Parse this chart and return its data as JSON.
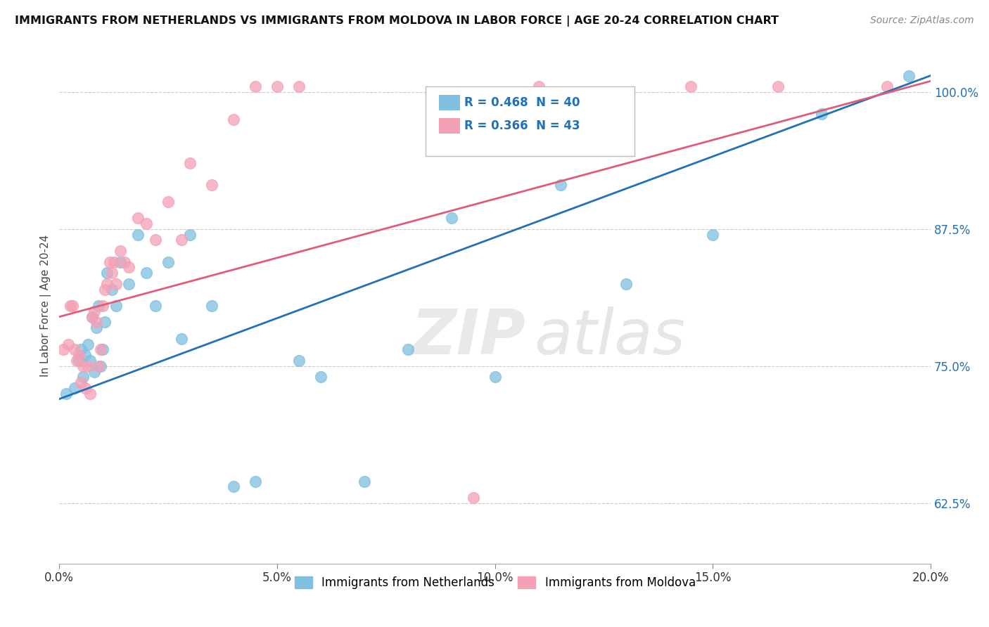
{
  "title": "IMMIGRANTS FROM NETHERLANDS VS IMMIGRANTS FROM MOLDOVA IN LABOR FORCE | AGE 20-24 CORRELATION CHART",
  "source": "Source: ZipAtlas.com",
  "xlabel": "",
  "ylabel": "In Labor Force | Age 20-24",
  "xlim": [
    0.0,
    20.0
  ],
  "ylim": [
    57.0,
    104.0
  ],
  "yticks": [
    62.5,
    75.0,
    87.5,
    100.0
  ],
  "xticks": [
    0.0,
    5.0,
    10.0,
    15.0,
    20.0
  ],
  "xtick_labels": [
    "0.0%",
    "5.0%",
    "10.0%",
    "15.0%",
    "20.0%"
  ],
  "ytick_labels": [
    "62.5%",
    "75.0%",
    "87.5%",
    "100.0%"
  ],
  "legend1_label": "Immigrants from Netherlands",
  "legend2_label": "Immigrants from Moldova",
  "R_netherlands": 0.468,
  "N_netherlands": 40,
  "R_moldova": 0.366,
  "N_moldova": 43,
  "netherlands_color": "#7fbfdf",
  "moldova_color": "#f4a0b5",
  "netherlands_line_color": "#2171b5",
  "moldova_line_color": "#e05c7a",
  "watermark_zip": "ZIP",
  "watermark_atlas": "atlas",
  "nl_line_x0": 0.0,
  "nl_line_y0": 72.0,
  "nl_line_x1": 20.0,
  "nl_line_y1": 101.5,
  "md_line_x0": 0.0,
  "md_line_y0": 79.5,
  "md_line_x1": 20.0,
  "md_line_y1": 101.0,
  "netherlands_x": [
    0.15,
    0.35,
    0.45,
    0.5,
    0.55,
    0.6,
    0.65,
    0.7,
    0.75,
    0.8,
    0.85,
    0.9,
    0.95,
    1.0,
    1.05,
    1.1,
    1.2,
    1.3,
    1.4,
    1.6,
    1.8,
    2.0,
    2.2,
    2.5,
    2.8,
    3.0,
    3.5,
    4.0,
    4.5,
    5.5,
    6.0,
    7.0,
    8.0,
    9.0,
    10.0,
    11.5,
    13.0,
    15.0,
    17.5,
    19.5
  ],
  "netherlands_y": [
    72.5,
    73.0,
    75.5,
    76.5,
    74.0,
    76.0,
    77.0,
    75.5,
    79.5,
    74.5,
    78.5,
    80.5,
    75.0,
    76.5,
    79.0,
    83.5,
    82.0,
    80.5,
    84.5,
    82.5,
    87.0,
    83.5,
    80.5,
    84.5,
    77.5,
    87.0,
    80.5,
    64.0,
    64.5,
    75.5,
    74.0,
    64.5,
    76.5,
    88.5,
    74.0,
    91.5,
    82.5,
    87.0,
    98.0,
    101.5
  ],
  "moldova_x": [
    0.1,
    0.2,
    0.25,
    0.3,
    0.35,
    0.4,
    0.45,
    0.5,
    0.55,
    0.6,
    0.65,
    0.7,
    0.75,
    0.8,
    0.85,
    0.9,
    0.95,
    1.0,
    1.05,
    1.1,
    1.15,
    1.2,
    1.25,
    1.3,
    1.4,
    1.5,
    1.6,
    1.8,
    2.0,
    2.2,
    2.5,
    2.8,
    3.0,
    3.5,
    4.0,
    4.5,
    5.0,
    5.5,
    9.5,
    11.0,
    14.5,
    16.5,
    19.0
  ],
  "moldova_y": [
    76.5,
    77.0,
    80.5,
    80.5,
    76.5,
    75.5,
    76.0,
    73.5,
    75.0,
    73.0,
    75.0,
    72.5,
    79.5,
    80.0,
    79.0,
    75.0,
    76.5,
    80.5,
    82.0,
    82.5,
    84.5,
    83.5,
    84.5,
    82.5,
    85.5,
    84.5,
    84.0,
    88.5,
    88.0,
    86.5,
    90.0,
    86.5,
    93.5,
    91.5,
    97.5,
    100.5,
    100.5,
    100.5,
    63.0,
    100.5,
    100.5,
    100.5,
    100.5
  ]
}
